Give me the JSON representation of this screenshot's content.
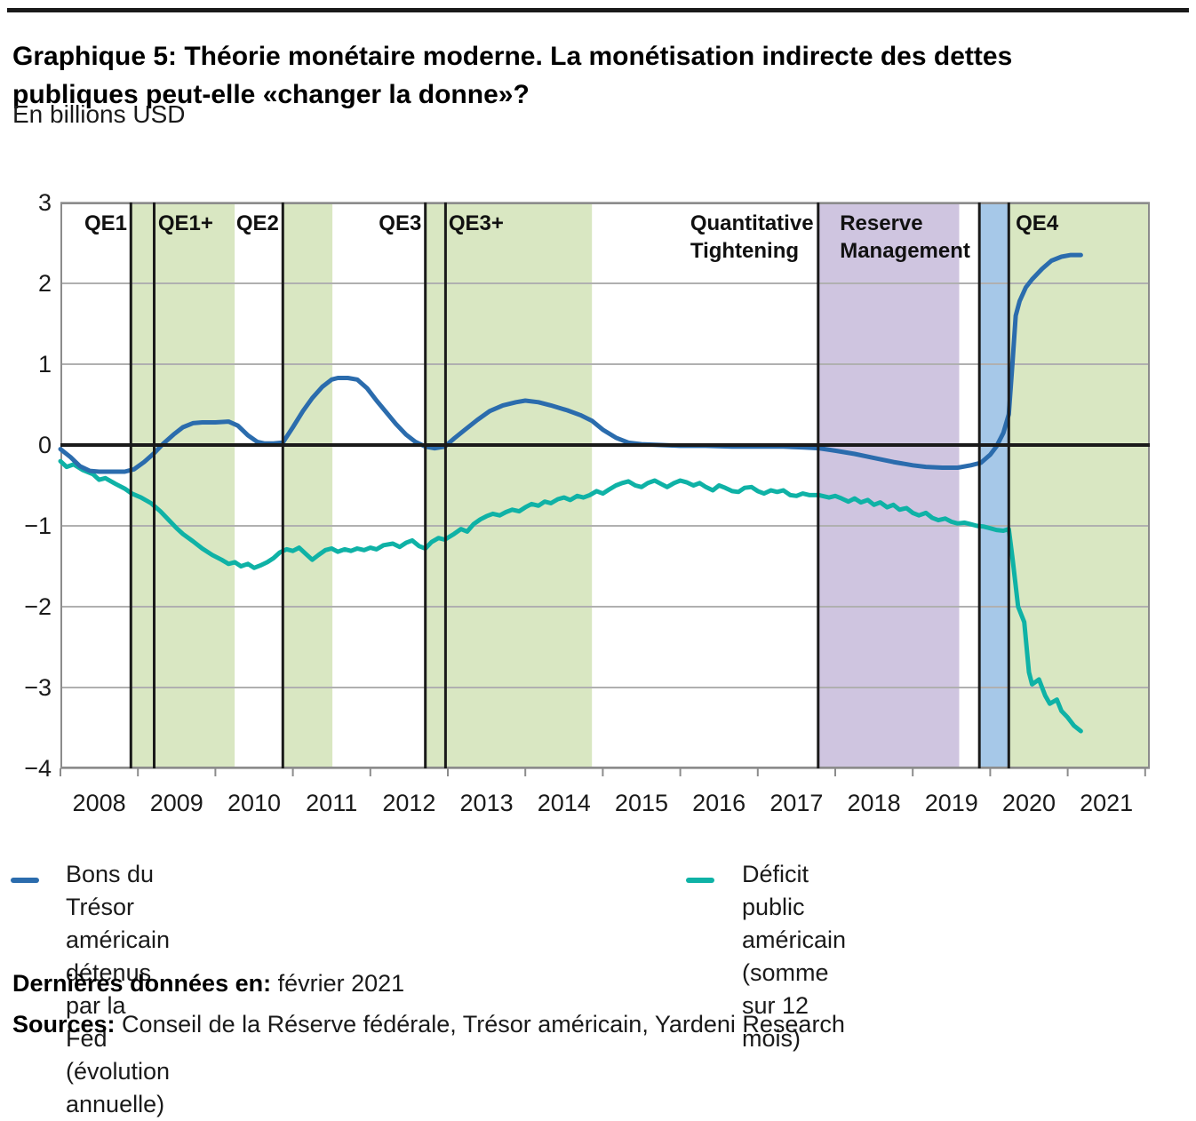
{
  "chart_data": {
    "type": "line",
    "title": "Graphique 5: Théorie monétaire moderne. La monétisation indirecte des dettes publiques peut-elle «changer la donne»?",
    "subtitle": "En billions USD",
    "xlim": [
      2008,
      2022.06
    ],
    "ylim": [
      -4,
      3
    ],
    "grid": "horizontal",
    "yticks": [
      3,
      2,
      1,
      0,
      -1,
      -2,
      -3,
      -4
    ],
    "ytick_labels": [
      "3",
      "2",
      "1",
      "0",
      "−1",
      "−2",
      "−3",
      "−4"
    ],
    "xticks": [
      2008,
      2009,
      2010,
      2011,
      2012,
      2013,
      2014,
      2015,
      2016,
      2017,
      2018,
      2019,
      2020,
      2021,
      2022
    ],
    "xtick_labels": [
      "2008",
      "2009",
      "2010",
      "2011",
      "2012",
      "2013",
      "2014",
      "2015",
      "2016",
      "2017",
      "2018",
      "2019",
      "2020",
      "2021"
    ],
    "colors": {
      "fed_line": "#2b6cad",
      "deficit_line": "#0fb2a6",
      "qe_band": "#d9e7c2",
      "reserve_band": "#cfc5e0",
      "repo_band": "#a6c8e8",
      "gridline": "#b0b0b0",
      "axis": "#8c8c8c",
      "event_line": "#1a1a1a",
      "zero_line": "#1a1a1a"
    },
    "bands": [
      {
        "name": "QE1 period",
        "from": 2008.91,
        "to": 2010.25,
        "color": "#d9e7c2"
      },
      {
        "name": "QE2 period",
        "from": 2010.87,
        "to": 2011.51,
        "color": "#d9e7c2"
      },
      {
        "name": "QE3 period",
        "from": 2012.71,
        "to": 2014.86,
        "color": "#d9e7c2"
      },
      {
        "name": "Reserve Management period",
        "from": 2017.78,
        "to": 2019.6,
        "color": "#cfc5e0"
      },
      {
        "name": "repo period",
        "from": 2019.86,
        "to": 2020.24,
        "color": "#a6c8e8"
      },
      {
        "name": "QE4 period",
        "from": 2020.24,
        "to": 2022.06,
        "color": "#d9e7c2"
      }
    ],
    "event_lines": [
      2008.91,
      2009.21,
      2010.87,
      2012.71,
      2012.97,
      2017.78,
      2019.86,
      2020.24
    ],
    "annotations": [
      {
        "text": "QE1",
        "x": 2008.86,
        "align": "right"
      },
      {
        "text": "QE1+",
        "x": 2009.26,
        "align": "left"
      },
      {
        "text": "QE2",
        "x": 2010.82,
        "align": "right"
      },
      {
        "text": "QE3",
        "x": 2012.66,
        "align": "right"
      },
      {
        "text": "QE3+",
        "x": 2013.01,
        "align": "left"
      },
      {
        "text": "Quantitative\nTightening",
        "x": 2017.72,
        "align": "right"
      },
      {
        "text": "Reserve\nManagement",
        "x": 2018.06,
        "align": "left"
      },
      {
        "text": "QE4",
        "x": 2020.33,
        "align": "left"
      }
    ],
    "series": [
      {
        "name": "Bons du Trésor américain détenus par la Fed (évolution annuelle)",
        "color": "#2b6cad",
        "points": [
          [
            2008.0,
            -0.05
          ],
          [
            2008.13,
            -0.15
          ],
          [
            2008.25,
            -0.26
          ],
          [
            2008.38,
            -0.32
          ],
          [
            2008.5,
            -0.33
          ],
          [
            2008.67,
            -0.33
          ],
          [
            2008.83,
            -0.33
          ],
          [
            2008.95,
            -0.3
          ],
          [
            2009.08,
            -0.21
          ],
          [
            2009.21,
            -0.1
          ],
          [
            2009.33,
            0.02
          ],
          [
            2009.46,
            0.13
          ],
          [
            2009.58,
            0.22
          ],
          [
            2009.71,
            0.27
          ],
          [
            2009.83,
            0.28
          ],
          [
            2010.0,
            0.28
          ],
          [
            2010.17,
            0.29
          ],
          [
            2010.29,
            0.24
          ],
          [
            2010.42,
            0.12
          ],
          [
            2010.54,
            0.04
          ],
          [
            2010.63,
            0.02
          ],
          [
            2010.75,
            0.02
          ],
          [
            2010.87,
            0.03
          ],
          [
            2011.0,
            0.22
          ],
          [
            2011.13,
            0.42
          ],
          [
            2011.25,
            0.58
          ],
          [
            2011.38,
            0.72
          ],
          [
            2011.5,
            0.81
          ],
          [
            2011.58,
            0.83
          ],
          [
            2011.71,
            0.83
          ],
          [
            2011.83,
            0.81
          ],
          [
            2011.96,
            0.7
          ],
          [
            2012.08,
            0.55
          ],
          [
            2012.21,
            0.4
          ],
          [
            2012.33,
            0.26
          ],
          [
            2012.46,
            0.13
          ],
          [
            2012.58,
            0.04
          ],
          [
            2012.71,
            -0.02
          ],
          [
            2012.83,
            -0.04
          ],
          [
            2012.96,
            -0.02
          ],
          [
            2013.08,
            0.08
          ],
          [
            2013.21,
            0.18
          ],
          [
            2013.38,
            0.31
          ],
          [
            2013.54,
            0.42
          ],
          [
            2013.71,
            0.49
          ],
          [
            2013.88,
            0.53
          ],
          [
            2014.0,
            0.55
          ],
          [
            2014.17,
            0.53
          ],
          [
            2014.33,
            0.49
          ],
          [
            2014.54,
            0.43
          ],
          [
            2014.71,
            0.37
          ],
          [
            2014.86,
            0.3
          ],
          [
            2015.0,
            0.19
          ],
          [
            2015.17,
            0.09
          ],
          [
            2015.33,
            0.03
          ],
          [
            2015.5,
            0.01
          ],
          [
            2015.75,
            0.0
          ],
          [
            2016.0,
            -0.01
          ],
          [
            2016.33,
            -0.01
          ],
          [
            2016.67,
            -0.02
          ],
          [
            2017.0,
            -0.02
          ],
          [
            2017.33,
            -0.02
          ],
          [
            2017.6,
            -0.03
          ],
          [
            2017.79,
            -0.04
          ],
          [
            2018.0,
            -0.07
          ],
          [
            2018.25,
            -0.11
          ],
          [
            2018.5,
            -0.16
          ],
          [
            2018.75,
            -0.21
          ],
          [
            2019.0,
            -0.25
          ],
          [
            2019.17,
            -0.27
          ],
          [
            2019.38,
            -0.28
          ],
          [
            2019.58,
            -0.28
          ],
          [
            2019.75,
            -0.25
          ],
          [
            2019.88,
            -0.22
          ],
          [
            2020.0,
            -0.12
          ],
          [
            2020.08,
            -0.02
          ],
          [
            2020.17,
            0.15
          ],
          [
            2020.24,
            0.38
          ],
          [
            2020.29,
            1.05
          ],
          [
            2020.33,
            1.6
          ],
          [
            2020.38,
            1.78
          ],
          [
            2020.46,
            1.95
          ],
          [
            2020.54,
            2.05
          ],
          [
            2020.67,
            2.18
          ],
          [
            2020.79,
            2.28
          ],
          [
            2020.92,
            2.33
          ],
          [
            2021.04,
            2.35
          ],
          [
            2021.17,
            2.35
          ]
        ]
      },
      {
        "name": "Déficit public américain (somme sur 12 mois)",
        "color": "#0fb2a6",
        "points": [
          [
            2008.0,
            -0.2
          ],
          [
            2008.08,
            -0.27
          ],
          [
            2008.17,
            -0.24
          ],
          [
            2008.29,
            -0.31
          ],
          [
            2008.42,
            -0.36
          ],
          [
            2008.5,
            -0.43
          ],
          [
            2008.58,
            -0.41
          ],
          [
            2008.71,
            -0.48
          ],
          [
            2008.83,
            -0.54
          ],
          [
            2008.92,
            -0.6
          ],
          [
            2009.04,
            -0.65
          ],
          [
            2009.17,
            -0.72
          ],
          [
            2009.29,
            -0.82
          ],
          [
            2009.42,
            -0.95
          ],
          [
            2009.5,
            -1.03
          ],
          [
            2009.58,
            -1.1
          ],
          [
            2009.71,
            -1.19
          ],
          [
            2009.83,
            -1.28
          ],
          [
            2009.96,
            -1.36
          ],
          [
            2010.08,
            -1.42
          ],
          [
            2010.17,
            -1.47
          ],
          [
            2010.25,
            -1.45
          ],
          [
            2010.33,
            -1.5
          ],
          [
            2010.42,
            -1.47
          ],
          [
            2010.5,
            -1.52
          ],
          [
            2010.58,
            -1.49
          ],
          [
            2010.67,
            -1.45
          ],
          [
            2010.75,
            -1.4
          ],
          [
            2010.83,
            -1.33
          ],
          [
            2010.92,
            -1.29
          ],
          [
            2011.0,
            -1.31
          ],
          [
            2011.08,
            -1.27
          ],
          [
            2011.17,
            -1.35
          ],
          [
            2011.25,
            -1.42
          ],
          [
            2011.33,
            -1.36
          ],
          [
            2011.42,
            -1.3
          ],
          [
            2011.5,
            -1.28
          ],
          [
            2011.58,
            -1.32
          ],
          [
            2011.67,
            -1.29
          ],
          [
            2011.75,
            -1.31
          ],
          [
            2011.83,
            -1.28
          ],
          [
            2011.92,
            -1.3
          ],
          [
            2012.0,
            -1.27
          ],
          [
            2012.08,
            -1.29
          ],
          [
            2012.17,
            -1.24
          ],
          [
            2012.29,
            -1.22
          ],
          [
            2012.38,
            -1.26
          ],
          [
            2012.46,
            -1.21
          ],
          [
            2012.54,
            -1.18
          ],
          [
            2012.63,
            -1.25
          ],
          [
            2012.71,
            -1.28
          ],
          [
            2012.79,
            -1.2
          ],
          [
            2012.88,
            -1.15
          ],
          [
            2012.96,
            -1.17
          ],
          [
            2013.08,
            -1.1
          ],
          [
            2013.17,
            -1.04
          ],
          [
            2013.25,
            -1.07
          ],
          [
            2013.33,
            -0.98
          ],
          [
            2013.42,
            -0.92
          ],
          [
            2013.5,
            -0.88
          ],
          [
            2013.58,
            -0.85
          ],
          [
            2013.67,
            -0.87
          ],
          [
            2013.75,
            -0.83
          ],
          [
            2013.83,
            -0.8
          ],
          [
            2013.92,
            -0.82
          ],
          [
            2014.0,
            -0.77
          ],
          [
            2014.08,
            -0.73
          ],
          [
            2014.17,
            -0.75
          ],
          [
            2014.25,
            -0.7
          ],
          [
            2014.33,
            -0.72
          ],
          [
            2014.42,
            -0.67
          ],
          [
            2014.5,
            -0.65
          ],
          [
            2014.58,
            -0.68
          ],
          [
            2014.67,
            -0.63
          ],
          [
            2014.75,
            -0.65
          ],
          [
            2014.83,
            -0.62
          ],
          [
            2014.92,
            -0.57
          ],
          [
            2015.0,
            -0.6
          ],
          [
            2015.08,
            -0.55
          ],
          [
            2015.17,
            -0.5
          ],
          [
            2015.25,
            -0.47
          ],
          [
            2015.33,
            -0.45
          ],
          [
            2015.42,
            -0.5
          ],
          [
            2015.5,
            -0.52
          ],
          [
            2015.58,
            -0.47
          ],
          [
            2015.67,
            -0.44
          ],
          [
            2015.75,
            -0.48
          ],
          [
            2015.83,
            -0.52
          ],
          [
            2015.92,
            -0.47
          ],
          [
            2016.0,
            -0.44
          ],
          [
            2016.08,
            -0.46
          ],
          [
            2016.17,
            -0.5
          ],
          [
            2016.25,
            -0.47
          ],
          [
            2016.33,
            -0.52
          ],
          [
            2016.42,
            -0.56
          ],
          [
            2016.5,
            -0.5
          ],
          [
            2016.58,
            -0.53
          ],
          [
            2016.67,
            -0.57
          ],
          [
            2016.75,
            -0.58
          ],
          [
            2016.83,
            -0.53
          ],
          [
            2016.92,
            -0.52
          ],
          [
            2017.0,
            -0.57
          ],
          [
            2017.08,
            -0.6
          ],
          [
            2017.17,
            -0.56
          ],
          [
            2017.25,
            -0.58
          ],
          [
            2017.33,
            -0.56
          ],
          [
            2017.42,
            -0.62
          ],
          [
            2017.5,
            -0.63
          ],
          [
            2017.58,
            -0.6
          ],
          [
            2017.67,
            -0.62
          ],
          [
            2017.79,
            -0.62
          ],
          [
            2017.92,
            -0.65
          ],
          [
            2018.0,
            -0.63
          ],
          [
            2018.08,
            -0.66
          ],
          [
            2018.17,
            -0.7
          ],
          [
            2018.25,
            -0.66
          ],
          [
            2018.33,
            -0.71
          ],
          [
            2018.42,
            -0.68
          ],
          [
            2018.5,
            -0.74
          ],
          [
            2018.58,
            -0.71
          ],
          [
            2018.67,
            -0.77
          ],
          [
            2018.75,
            -0.74
          ],
          [
            2018.83,
            -0.8
          ],
          [
            2018.92,
            -0.78
          ],
          [
            2019.0,
            -0.84
          ],
          [
            2019.08,
            -0.87
          ],
          [
            2019.17,
            -0.84
          ],
          [
            2019.25,
            -0.9
          ],
          [
            2019.33,
            -0.93
          ],
          [
            2019.42,
            -0.91
          ],
          [
            2019.5,
            -0.95
          ],
          [
            2019.58,
            -0.97
          ],
          [
            2019.67,
            -0.96
          ],
          [
            2019.75,
            -0.98
          ],
          [
            2019.83,
            -1.0
          ],
          [
            2019.92,
            -1.01
          ],
          [
            2020.0,
            -1.03
          ],
          [
            2020.08,
            -1.05
          ],
          [
            2020.17,
            -1.06
          ],
          [
            2020.24,
            -1.04
          ],
          [
            2020.29,
            -1.42
          ],
          [
            2020.36,
            -2.0
          ],
          [
            2020.44,
            -2.19
          ],
          [
            2020.5,
            -2.81
          ],
          [
            2020.54,
            -2.96
          ],
          [
            2020.63,
            -2.9
          ],
          [
            2020.71,
            -3.1
          ],
          [
            2020.77,
            -3.2
          ],
          [
            2020.86,
            -3.15
          ],
          [
            2020.92,
            -3.29
          ],
          [
            2021.0,
            -3.37
          ],
          [
            2021.08,
            -3.47
          ],
          [
            2021.17,
            -3.54
          ]
        ]
      }
    ]
  },
  "legend": [
    {
      "label": "Bons du Trésor américain détenus par la Fed\n(évolution annuelle)",
      "color": "#2b6cad"
    },
    {
      "label": "Déficit public américain\n(somme sur 12 mois)",
      "color": "#0fb2a6"
    }
  ],
  "footer": {
    "last_data_label": "Dernières données en:",
    "last_data_value": " février 2021",
    "sources_label": "Sources:",
    "sources_value": " Conseil de la Réserve fédérale, Trésor américain, Yardeni Research"
  }
}
